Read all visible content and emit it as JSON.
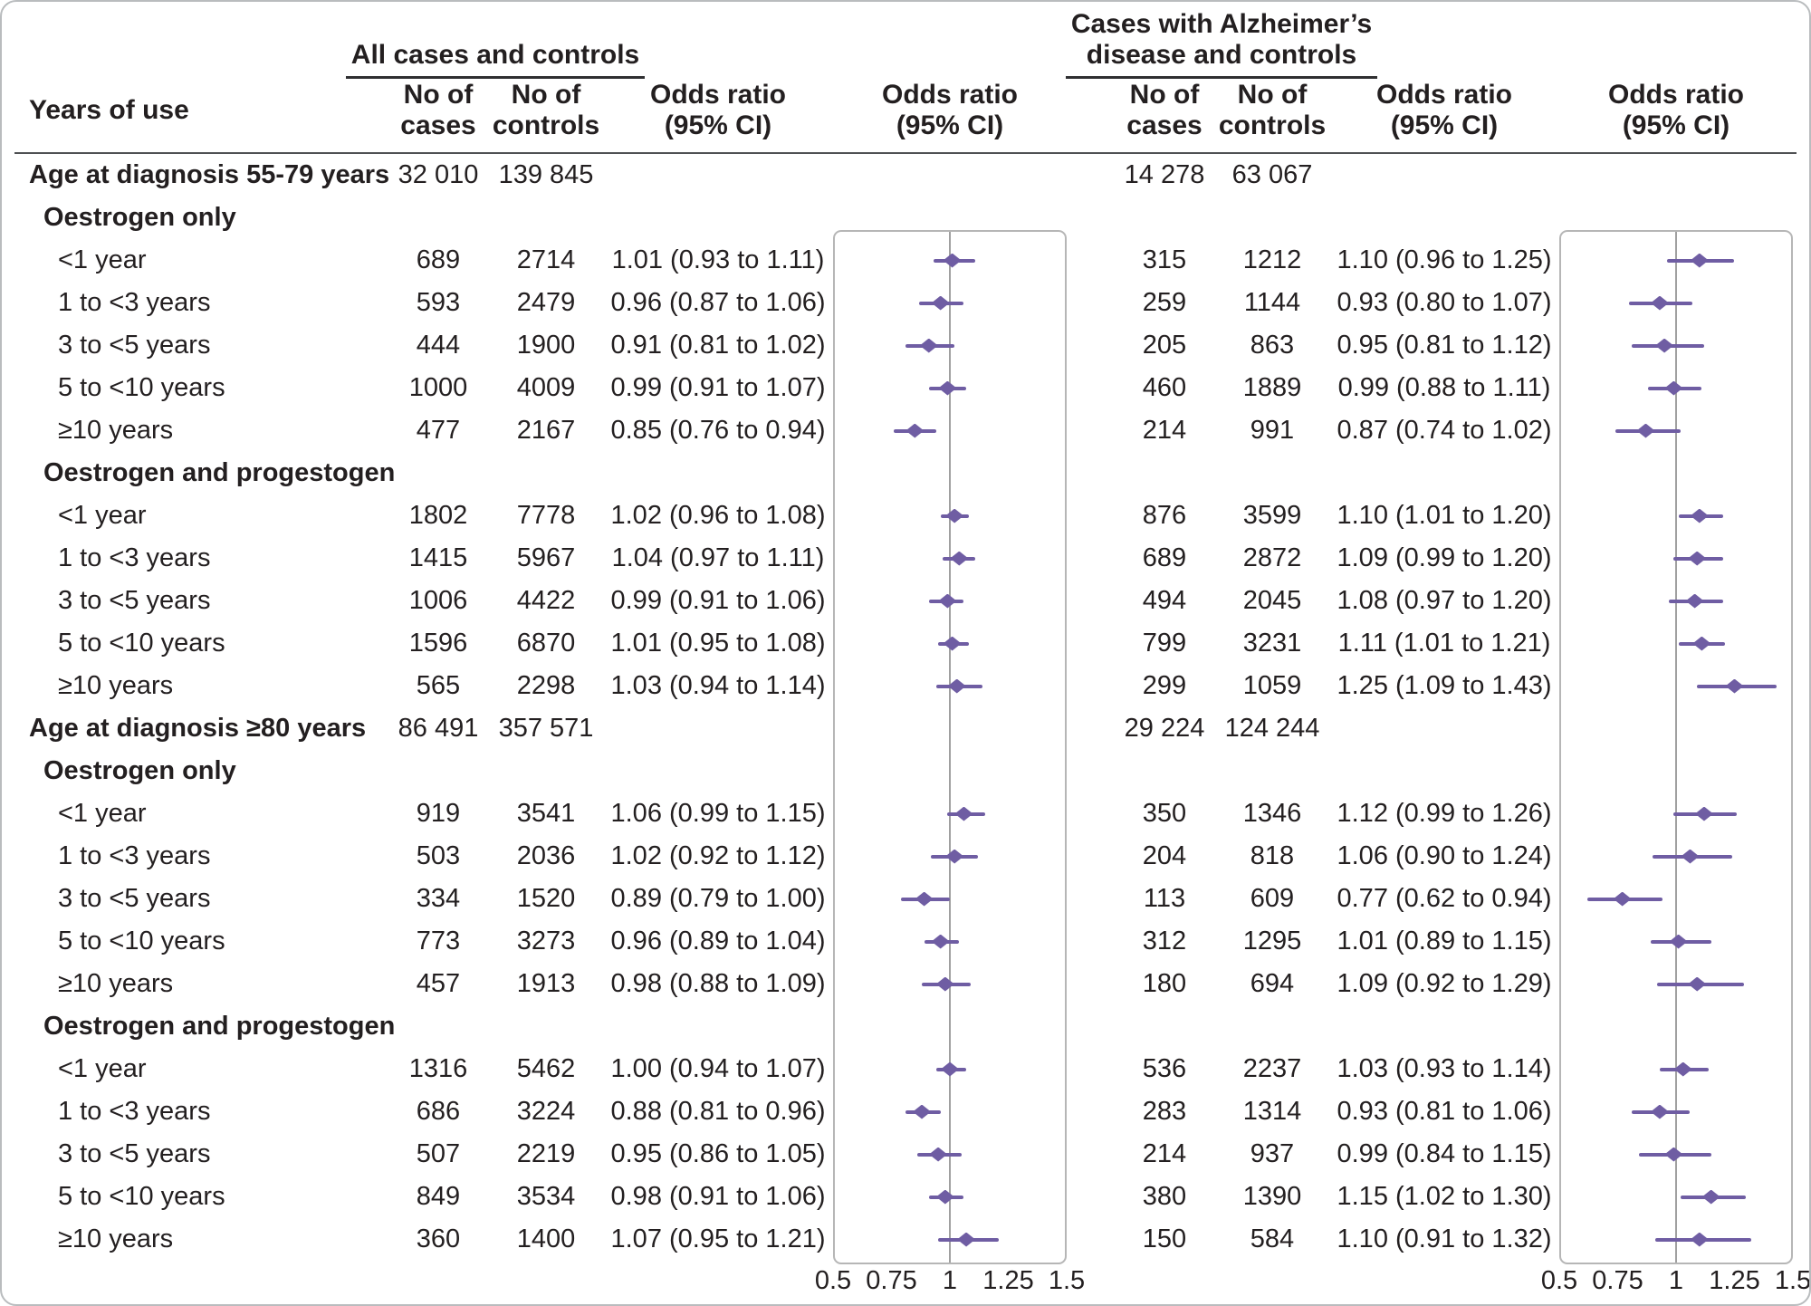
{
  "colors": {
    "marker": "#6f5da3",
    "panel_border": "#b6b6b6",
    "reference_line": "#a0a0a0",
    "text": "#231f20",
    "rule": "#4f5153"
  },
  "header": {
    "years_of_use": "Years of use",
    "group1_title": "All cases and controls",
    "group2_title": [
      "Cases with Alzheimer’s",
      "disease and controls"
    ],
    "no_of_cases": [
      "No of",
      "cases"
    ],
    "no_of_controls": [
      "No of",
      "controls"
    ],
    "odds_ratio": [
      "Odds ratio",
      "(95% CI)"
    ]
  },
  "chart_data": {
    "type": "scatter",
    "subtype": "forest-plot",
    "panels": [
      "All cases and controls",
      "Cases with Alzheimer’s disease and controls"
    ],
    "x_label": "Odds ratio (95% CI)",
    "xlim": [
      0.5,
      1.5
    ],
    "x_ticks": [
      0.5,
      0.75,
      1,
      1.25,
      1.5
    ],
    "x_tick_labels": [
      "0.5",
      "0.75",
      "1",
      "1.25",
      "1.5"
    ],
    "reference_line": 1,
    "rows": [
      {
        "t": "group",
        "label": "Age at diagnosis 55-79 years",
        "all": {
          "cases": "32 010",
          "controls": "139 845"
        },
        "alz": {
          "cases": "14 278",
          "controls": "63 067"
        }
      },
      {
        "t": "sub",
        "label": "Oestrogen only"
      },
      {
        "t": "data",
        "label": "<1 year",
        "all": {
          "cases": "689",
          "controls": "2714",
          "text": "1.01 (0.93 to 1.11)",
          "or": 1.01,
          "lo": 0.93,
          "hi": 1.11
        },
        "alz": {
          "cases": "315",
          "controls": "1212",
          "text": "1.10 (0.96 to 1.25)",
          "or": 1.1,
          "lo": 0.96,
          "hi": 1.25
        }
      },
      {
        "t": "data",
        "label": "1 to <3 years",
        "all": {
          "cases": "593",
          "controls": "2479",
          "text": "0.96 (0.87 to 1.06)",
          "or": 0.96,
          "lo": 0.87,
          "hi": 1.06
        },
        "alz": {
          "cases": "259",
          "controls": "1144",
          "text": "0.93 (0.80 to 1.07)",
          "or": 0.93,
          "lo": 0.8,
          "hi": 1.07
        }
      },
      {
        "t": "data",
        "label": "3 to <5 years",
        "all": {
          "cases": "444",
          "controls": "1900",
          "text": "0.91 (0.81 to 1.02)",
          "or": 0.91,
          "lo": 0.81,
          "hi": 1.02
        },
        "alz": {
          "cases": "205",
          "controls": "863",
          "text": "0.95 (0.81 to 1.12)",
          "or": 0.95,
          "lo": 0.81,
          "hi": 1.12
        }
      },
      {
        "t": "data",
        "label": "5 to <10 years",
        "all": {
          "cases": "1000",
          "controls": "4009",
          "text": "0.99 (0.91 to 1.07)",
          "or": 0.99,
          "lo": 0.91,
          "hi": 1.07
        },
        "alz": {
          "cases": "460",
          "controls": "1889",
          "text": "0.99 (0.88 to 1.11)",
          "or": 0.99,
          "lo": 0.88,
          "hi": 1.11
        }
      },
      {
        "t": "data",
        "label": "≥10 years",
        "all": {
          "cases": "477",
          "controls": "2167",
          "text": "0.85 (0.76 to 0.94)",
          "or": 0.85,
          "lo": 0.76,
          "hi": 0.94
        },
        "alz": {
          "cases": "214",
          "controls": "991",
          "text": "0.87 (0.74 to 1.02)",
          "or": 0.87,
          "lo": 0.74,
          "hi": 1.02
        }
      },
      {
        "t": "sub",
        "label": "Oestrogen and progestogen"
      },
      {
        "t": "data",
        "label": "<1 year",
        "all": {
          "cases": "1802",
          "controls": "7778",
          "text": "1.02 (0.96 to 1.08)",
          "or": 1.02,
          "lo": 0.96,
          "hi": 1.08
        },
        "alz": {
          "cases": "876",
          "controls": "3599",
          "text": "1.10 (1.01 to 1.20)",
          "or": 1.1,
          "lo": 1.01,
          "hi": 1.2
        }
      },
      {
        "t": "data",
        "label": "1 to <3 years",
        "all": {
          "cases": "1415",
          "controls": "5967",
          "text": "1.04 (0.97 to 1.11)",
          "or": 1.04,
          "lo": 0.97,
          "hi": 1.11
        },
        "alz": {
          "cases": "689",
          "controls": "2872",
          "text": "1.09 (0.99 to 1.20)",
          "or": 1.09,
          "lo": 0.99,
          "hi": 1.2
        }
      },
      {
        "t": "data",
        "label": "3 to <5 years",
        "all": {
          "cases": "1006",
          "controls": "4422",
          "text": "0.99 (0.91 to 1.06)",
          "or": 0.99,
          "lo": 0.91,
          "hi": 1.06
        },
        "alz": {
          "cases": "494",
          "controls": "2045",
          "text": "1.08 (0.97 to 1.20)",
          "or": 1.08,
          "lo": 0.97,
          "hi": 1.2
        }
      },
      {
        "t": "data",
        "label": "5 to <10 years",
        "all": {
          "cases": "1596",
          "controls": "6870",
          "text": "1.01 (0.95 to 1.08)",
          "or": 1.01,
          "lo": 0.95,
          "hi": 1.08
        },
        "alz": {
          "cases": "799",
          "controls": "3231",
          "text": "1.11 (1.01 to 1.21)",
          "or": 1.11,
          "lo": 1.01,
          "hi": 1.21
        }
      },
      {
        "t": "data",
        "label": "≥10 years",
        "all": {
          "cases": "565",
          "controls": "2298",
          "text": "1.03 (0.94 to 1.14)",
          "or": 1.03,
          "lo": 0.94,
          "hi": 1.14
        },
        "alz": {
          "cases": "299",
          "controls": "1059",
          "text": "1.25 (1.09 to 1.43)",
          "or": 1.25,
          "lo": 1.09,
          "hi": 1.43
        }
      },
      {
        "t": "group",
        "label": "Age at diagnosis ≥80 years",
        "all": {
          "cases": "86 491",
          "controls": "357 571"
        },
        "alz": {
          "cases": "29 224",
          "controls": "124 244"
        }
      },
      {
        "t": "sub",
        "label": "Oestrogen only"
      },
      {
        "t": "data",
        "label": "<1 year",
        "all": {
          "cases": "919",
          "controls": "3541",
          "text": "1.06 (0.99 to 1.15)",
          "or": 1.06,
          "lo": 0.99,
          "hi": 1.15
        },
        "alz": {
          "cases": "350",
          "controls": "1346",
          "text": "1.12 (0.99 to 1.26)",
          "or": 1.12,
          "lo": 0.99,
          "hi": 1.26
        }
      },
      {
        "t": "data",
        "label": "1 to <3 years",
        "all": {
          "cases": "503",
          "controls": "2036",
          "text": "1.02 (0.92 to 1.12)",
          "or": 1.02,
          "lo": 0.92,
          "hi": 1.12
        },
        "alz": {
          "cases": "204",
          "controls": "818",
          "text": "1.06 (0.90 to 1.24)",
          "or": 1.06,
          "lo": 0.9,
          "hi": 1.24
        }
      },
      {
        "t": "data",
        "label": "3 to <5 years",
        "all": {
          "cases": "334",
          "controls": "1520",
          "text": "0.89 (0.79 to 1.00)",
          "or": 0.89,
          "lo": 0.79,
          "hi": 1.0
        },
        "alz": {
          "cases": "113",
          "controls": "609",
          "text": "0.77 (0.62 to 0.94)",
          "or": 0.77,
          "lo": 0.62,
          "hi": 0.94
        }
      },
      {
        "t": "data",
        "label": "5 to <10 years",
        "all": {
          "cases": "773",
          "controls": "3273",
          "text": "0.96 (0.89 to 1.04)",
          "or": 0.96,
          "lo": 0.89,
          "hi": 1.04
        },
        "alz": {
          "cases": "312",
          "controls": "1295",
          "text": "1.01 (0.89 to 1.15)",
          "or": 1.01,
          "lo": 0.89,
          "hi": 1.15
        }
      },
      {
        "t": "data",
        "label": "≥10 years",
        "all": {
          "cases": "457",
          "controls": "1913",
          "text": "0.98 (0.88 to 1.09)",
          "or": 0.98,
          "lo": 0.88,
          "hi": 1.09
        },
        "alz": {
          "cases": "180",
          "controls": "694",
          "text": "1.09 (0.92 to 1.29)",
          "or": 1.09,
          "lo": 0.92,
          "hi": 1.29
        }
      },
      {
        "t": "sub",
        "label": "Oestrogen and progestogen"
      },
      {
        "t": "data",
        "label": "<1 year",
        "all": {
          "cases": "1316",
          "controls": "5462",
          "text": "1.00 (0.94 to 1.07)",
          "or": 1.0,
          "lo": 0.94,
          "hi": 1.07
        },
        "alz": {
          "cases": "536",
          "controls": "2237",
          "text": "1.03 (0.93 to 1.14)",
          "or": 1.03,
          "lo": 0.93,
          "hi": 1.14
        }
      },
      {
        "t": "data",
        "label": "1 to <3 years",
        "all": {
          "cases": "686",
          "controls": "3224",
          "text": "0.88 (0.81 to 0.96)",
          "or": 0.88,
          "lo": 0.81,
          "hi": 0.96
        },
        "alz": {
          "cases": "283",
          "controls": "1314",
          "text": "0.93 (0.81 to 1.06)",
          "or": 0.93,
          "lo": 0.81,
          "hi": 1.06
        }
      },
      {
        "t": "data",
        "label": "3 to <5 years",
        "all": {
          "cases": "507",
          "controls": "2219",
          "text": "0.95 (0.86 to 1.05)",
          "or": 0.95,
          "lo": 0.86,
          "hi": 1.05
        },
        "alz": {
          "cases": "214",
          "controls": "937",
          "text": "0.99 (0.84 to 1.15)",
          "or": 0.99,
          "lo": 0.84,
          "hi": 1.15
        }
      },
      {
        "t": "data",
        "label": "5 to <10 years",
        "all": {
          "cases": "849",
          "controls": "3534",
          "text": "0.98 (0.91 to 1.06)",
          "or": 0.98,
          "lo": 0.91,
          "hi": 1.06
        },
        "alz": {
          "cases": "380",
          "controls": "1390",
          "text": "1.15 (1.02 to 1.30)",
          "or": 1.15,
          "lo": 1.02,
          "hi": 1.3
        }
      },
      {
        "t": "data",
        "label": "≥10 years",
        "all": {
          "cases": "360",
          "controls": "1400",
          "text": "1.07 (0.95 to 1.21)",
          "or": 1.07,
          "lo": 0.95,
          "hi": 1.21
        },
        "alz": {
          "cases": "150",
          "controls": "584",
          "text": "1.10 (0.91 to 1.32)",
          "or": 1.1,
          "lo": 0.91,
          "hi": 1.32
        }
      }
    ]
  }
}
